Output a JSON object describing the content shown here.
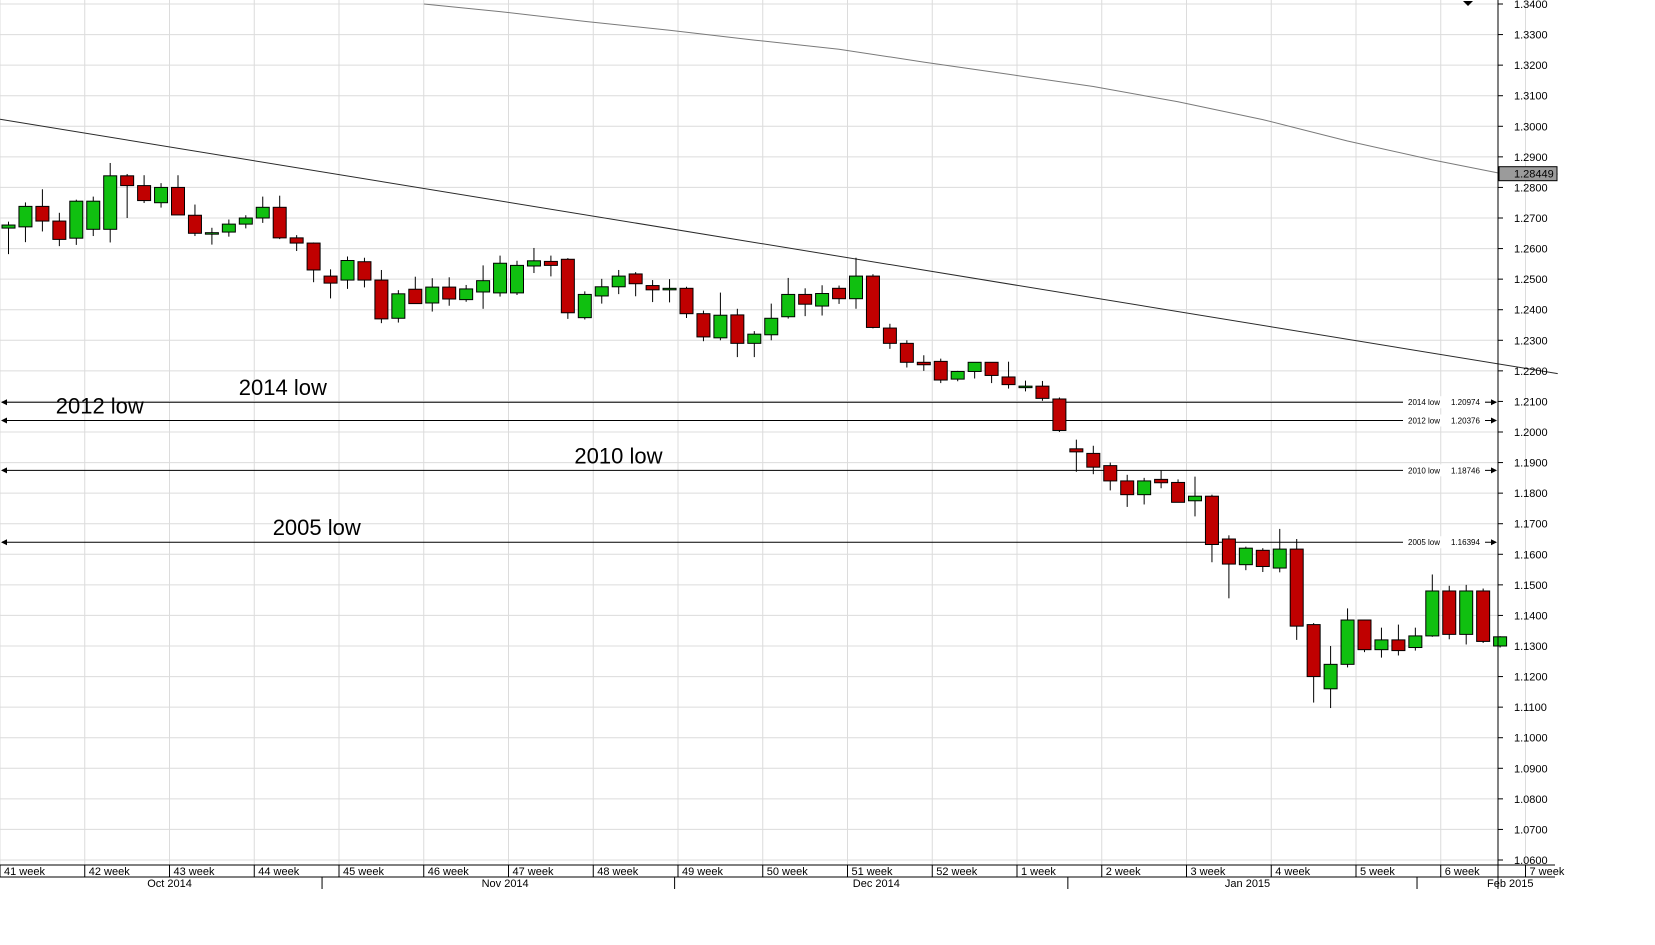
{
  "chart_data": {
    "type": "candlestick",
    "ylim": [
      1.06,
      1.34
    ],
    "y_ticks": [
      "1.3400",
      "1.3300",
      "1.3200",
      "1.3100",
      "1.3000",
      "1.2900",
      "1.2800",
      "1.2700",
      "1.2600",
      "1.2500",
      "1.2400",
      "1.2300",
      "1.2200",
      "1.2100",
      "1.2000",
      "1.1900",
      "1.1800",
      "1.1700",
      "1.1600",
      "1.1500",
      "1.1400",
      "1.1300",
      "1.1200",
      "1.1100",
      "1.1000",
      "1.0900",
      "1.0800",
      "1.0700",
      "1.0600"
    ],
    "week_labels": [
      {
        "label": "41 week",
        "i": 0
      },
      {
        "label": "42 week",
        "i": 5
      },
      {
        "label": "43 week",
        "i": 10
      },
      {
        "label": "44 week",
        "i": 15
      },
      {
        "label": "45 week",
        "i": 20
      },
      {
        "label": "46 week",
        "i": 25
      },
      {
        "label": "47 week",
        "i": 30
      },
      {
        "label": "48 week",
        "i": 35
      },
      {
        "label": "49 week",
        "i": 40
      },
      {
        "label": "50 week",
        "i": 45
      },
      {
        "label": "51 week",
        "i": 50
      },
      {
        "label": "52 week",
        "i": 55
      },
      {
        "label": "1 week",
        "i": 60
      },
      {
        "label": "2 week",
        "i": 65
      },
      {
        "label": "3 week",
        "i": 70
      },
      {
        "label": "4 week",
        "i": 75
      },
      {
        "label": "5 week",
        "i": 80
      },
      {
        "label": "6 week",
        "i": 85
      },
      {
        "label": "7 week",
        "i": 90
      }
    ],
    "month_labels": [
      {
        "label": "Oct 2014",
        "i": 9.5
      },
      {
        "label": "Nov 2014",
        "i": 29.3
      },
      {
        "label": "Dec 2014",
        "i": 51.2
      },
      {
        "label": "Jan 2015",
        "i": 73.1
      },
      {
        "label": "Feb 2015",
        "i": 88.6
      }
    ],
    "month_separators": [
      19,
      39.8,
      63,
      83.6
    ],
    "candles": [
      [
        1.2667,
        1.2688,
        1.2582,
        1.2677
      ],
      [
        1.2671,
        1.2751,
        1.2621,
        1.2738
      ],
      [
        1.2738,
        1.2794,
        1.2656,
        1.269
      ],
      [
        1.269,
        1.2717,
        1.2608,
        1.263
      ],
      [
        1.2634,
        1.276,
        1.2612,
        1.2755
      ],
      [
        1.2663,
        1.277,
        1.2641,
        1.2755
      ],
      [
        1.2663,
        1.288,
        1.262,
        1.2838
      ],
      [
        1.2838,
        1.2844,
        1.27,
        1.2806
      ],
      [
        1.2806,
        1.284,
        1.2749,
        1.2757
      ],
      [
        1.275,
        1.2814,
        1.2734,
        1.28
      ],
      [
        1.28,
        1.284,
        1.2735,
        1.271
      ],
      [
        1.2709,
        1.2744,
        1.2641,
        1.265
      ],
      [
        1.265,
        1.2668,
        1.2613,
        1.2652
      ],
      [
        1.2654,
        1.2695,
        1.2639,
        1.268
      ],
      [
        1.268,
        1.2709,
        1.2666,
        1.27
      ],
      [
        1.27,
        1.277,
        1.2684,
        1.2735
      ],
      [
        1.2735,
        1.2773,
        1.2631,
        1.2635
      ],
      [
        1.2635,
        1.2644,
        1.2592,
        1.2618
      ],
      [
        1.2618,
        1.262,
        1.249,
        1.253
      ],
      [
        1.251,
        1.2532,
        1.2437,
        1.2487
      ],
      [
        1.2497,
        1.2574,
        1.2468,
        1.2561
      ],
      [
        1.2557,
        1.257,
        1.2473,
        1.2497
      ],
      [
        1.2497,
        1.253,
        1.2356,
        1.237
      ],
      [
        1.2372,
        1.2464,
        1.2358,
        1.2452
      ],
      [
        1.2467,
        1.2508,
        1.2422,
        1.242
      ],
      [
        1.2422,
        1.2503,
        1.2394,
        1.2474
      ],
      [
        1.2474,
        1.2506,
        1.2413,
        1.2435
      ],
      [
        1.2433,
        1.2481,
        1.2426,
        1.2468
      ],
      [
        1.2458,
        1.2545,
        1.2403,
        1.2495
      ],
      [
        1.2455,
        1.2577,
        1.2443,
        1.2552
      ],
      [
        1.2455,
        1.256,
        1.2448,
        1.2545
      ],
      [
        1.2543,
        1.2602,
        1.252,
        1.256
      ],
      [
        1.2558,
        1.2577,
        1.2509,
        1.2545
      ],
      [
        1.2565,
        1.2569,
        1.237,
        1.239
      ],
      [
        1.2374,
        1.246,
        1.2368,
        1.245
      ],
      [
        1.2445,
        1.2501,
        1.242,
        1.2475
      ],
      [
        1.2475,
        1.253,
        1.2451,
        1.251
      ],
      [
        1.2517,
        1.2523,
        1.2444,
        1.2485
      ],
      [
        1.2479,
        1.2497,
        1.2425,
        1.2465
      ],
      [
        1.2465,
        1.25,
        1.2424,
        1.247
      ],
      [
        1.247,
        1.2475,
        1.2373,
        1.2387
      ],
      [
        1.2387,
        1.2397,
        1.2297,
        1.2311
      ],
      [
        1.2308,
        1.2456,
        1.23,
        1.2382
      ],
      [
        1.2383,
        1.2403,
        1.2245,
        1.229
      ],
      [
        1.229,
        1.233,
        1.2245,
        1.232
      ],
      [
        1.2318,
        1.242,
        1.23,
        1.2372
      ],
      [
        1.2377,
        1.2504,
        1.2371,
        1.245
      ],
      [
        1.245,
        1.247,
        1.2379,
        1.2418
      ],
      [
        1.2412,
        1.248,
        1.2381,
        1.2453
      ],
      [
        1.247,
        1.2479,
        1.2419,
        1.2436
      ],
      [
        1.2436,
        1.257,
        1.2403,
        1.251
      ],
      [
        1.251,
        1.2516,
        1.2339,
        1.2342
      ],
      [
        1.234,
        1.2354,
        1.2272,
        1.229
      ],
      [
        1.229,
        1.23,
        1.2211,
        1.2228
      ],
      [
        1.2228,
        1.2251,
        1.22,
        1.222
      ],
      [
        1.2231,
        1.224,
        1.216,
        1.217
      ],
      [
        1.2173,
        1.22,
        1.2166,
        1.2198
      ],
      [
        1.2198,
        1.2228,
        1.2175,
        1.2228
      ],
      [
        1.2228,
        1.2228,
        1.216,
        1.2185
      ],
      [
        1.218,
        1.223,
        1.2142,
        1.2155
      ],
      [
        1.215,
        1.2168,
        1.2133,
        1.215
      ],
      [
        1.215,
        1.2167,
        1.2102,
        1.211
      ],
      [
        1.2108,
        1.2113,
        1.2,
        1.2005
      ],
      [
        1.1945,
        1.1975,
        1.187,
        1.1935
      ],
      [
        1.193,
        1.1955,
        1.1862,
        1.1885
      ],
      [
        1.189,
        1.19,
        1.1809,
        1.184
      ],
      [
        1.184,
        1.186,
        1.1755,
        1.1795
      ],
      [
        1.1795,
        1.185,
        1.1763,
        1.184
      ],
      [
        1.1845,
        1.1875,
        1.1816,
        1.1834
      ],
      [
        1.1835,
        1.1845,
        1.177,
        1.177
      ],
      [
        1.1775,
        1.1854,
        1.1724,
        1.179
      ],
      [
        1.179,
        1.1795,
        1.1574,
        1.1632
      ],
      [
        1.165,
        1.1662,
        1.1456,
        1.1568
      ],
      [
        1.1566,
        1.1625,
        1.1548,
        1.162
      ],
      [
        1.1613,
        1.162,
        1.1542,
        1.156
      ],
      [
        1.1555,
        1.1683,
        1.1541,
        1.1617
      ],
      [
        1.1617,
        1.165,
        1.132,
        1.1365
      ],
      [
        1.137,
        1.1375,
        1.1115,
        1.12
      ],
      [
        1.116,
        1.13,
        1.1097,
        1.124
      ],
      [
        1.124,
        1.1423,
        1.123,
        1.1385
      ],
      [
        1.1385,
        1.1386,
        1.128,
        1.1288
      ],
      [
        1.1288,
        1.136,
        1.1262,
        1.132
      ],
      [
        1.132,
        1.137,
        1.1269,
        1.1285
      ],
      [
        1.1295,
        1.136,
        1.1285,
        1.1333
      ],
      [
        1.1333,
        1.1534,
        1.133,
        1.148
      ],
      [
        1.148,
        1.1497,
        1.1322,
        1.1338
      ],
      [
        1.1338,
        1.15,
        1.1305,
        1.148
      ],
      [
        1.148,
        1.1488,
        1.131,
        1.1315
      ],
      [
        1.13,
        1.1332,
        1.1295,
        1.133
      ]
    ],
    "downtrend_line": {
      "from": [
        -0.5,
        1.3023
      ],
      "to": [
        91.4,
        1.2191
      ]
    },
    "moving_average": [
      [
        24.5,
        1.34
      ],
      [
        29,
        1.3375
      ],
      [
        34,
        1.3343
      ],
      [
        39,
        1.3314
      ],
      [
        44,
        1.3282
      ],
      [
        49,
        1.3252
      ],
      [
        54,
        1.321
      ],
      [
        59,
        1.317
      ],
      [
        64,
        1.313
      ],
      [
        69,
        1.308
      ],
      [
        74,
        1.3022
      ],
      [
        79,
        1.2952
      ],
      [
        84,
        1.289
      ],
      [
        88.2,
        1.2844
      ],
      [
        91.4,
        1.2844
      ]
    ],
    "current_price": "1.28449",
    "levels": [
      {
        "name": "2014 low",
        "value": 1.20974,
        "value_label": "1.20974",
        "big_label": "2014 low",
        "big_label_i": 14
      },
      {
        "name": "2012 low",
        "value": 1.20376,
        "value_label": "1.20376",
        "big_label": "2012 low",
        "big_label_i": 3.2
      },
      {
        "name": "2010 low",
        "value": 1.18746,
        "value_label": "1.18746",
        "big_label": "2010 low",
        "big_label_i": 33.8
      },
      {
        "name": "2005 low",
        "value": 1.16394,
        "value_label": "1.16394",
        "big_label": "2005 low",
        "big_label_i": 16
      }
    ],
    "colors": {
      "bull": "#10c010",
      "bear": "#c00000",
      "grid": "#dcdcdc",
      "axis": "#000000",
      "ma_line": "#7a7a7a",
      "trend_line": "#2a2a2a"
    }
  }
}
